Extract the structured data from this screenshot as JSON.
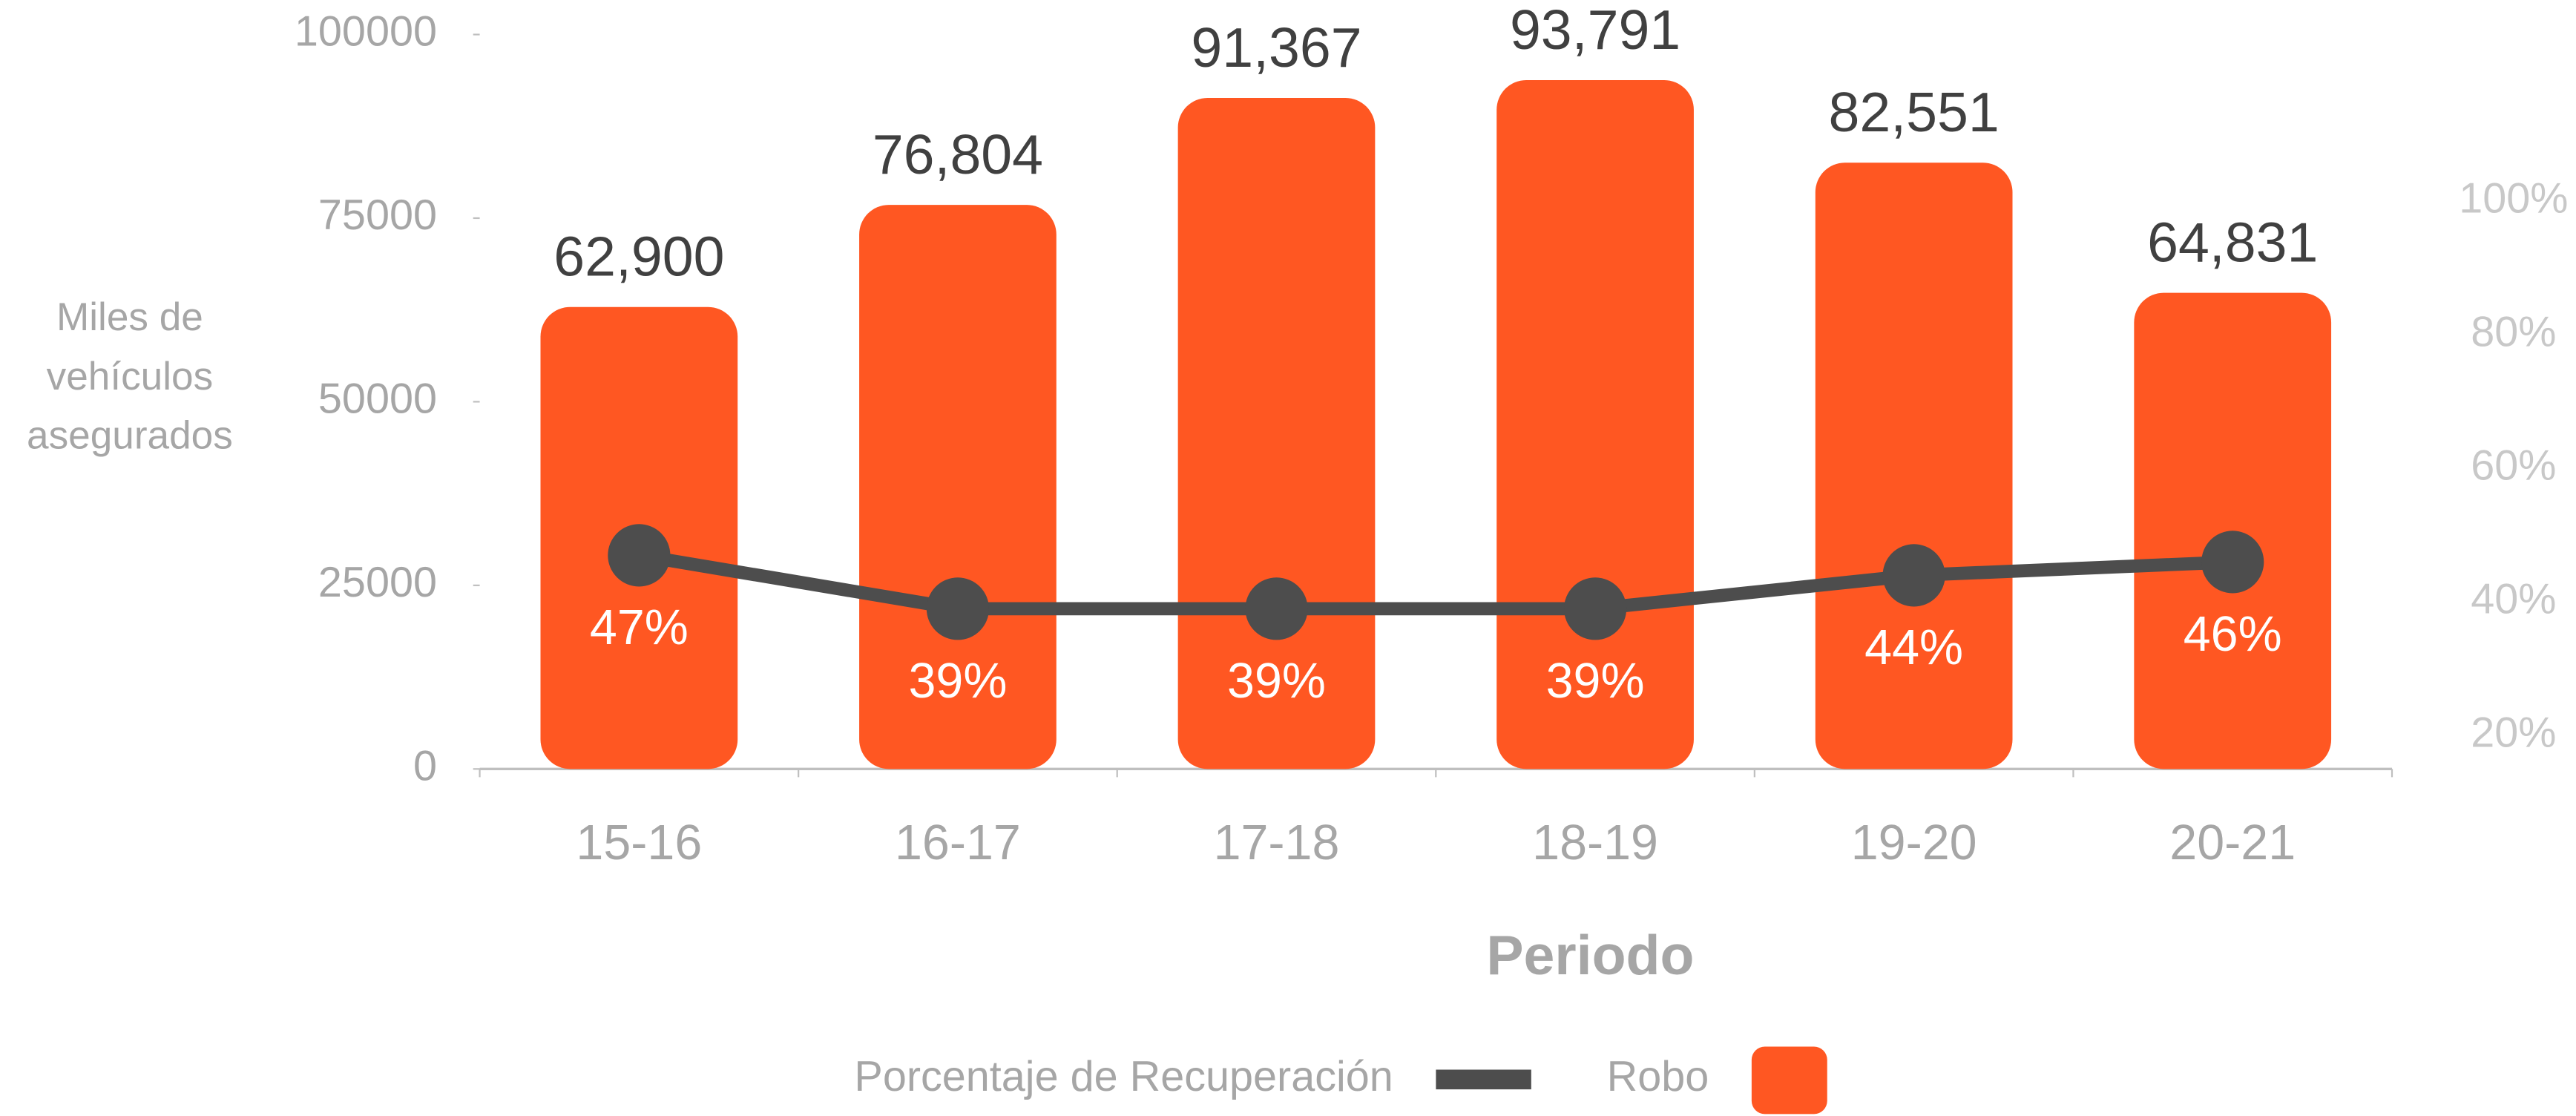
{
  "chart_data": {
    "type": "bar",
    "y_label": "Miles de vehículos asegurados",
    "x_label": "Periodo",
    "categories": [
      "15-16",
      "16-17",
      "17-18",
      "18-19",
      "19-20",
      "20-21"
    ],
    "series": [
      {
        "name": "Porcentaje de Recuperación",
        "type": "line",
        "axis": "y2",
        "color": "#4d4d4d",
        "values": [
          47,
          39,
          39,
          39,
          44,
          46
        ],
        "value_labels": [
          "47%",
          "39%",
          "39%",
          "39%",
          "44%",
          "46%"
        ]
      },
      {
        "name": "Robo",
        "type": "bar",
        "color": "#ff5722",
        "values": [
          62900,
          76804,
          91367,
          93791,
          82551,
          64831
        ],
        "value_labels": [
          "62,900",
          "76,804",
          "91,367",
          "93,791",
          "82,551",
          "64,831"
        ]
      }
    ],
    "ylim": [
      0,
      100000
    ],
    "yticks": [
      0,
      25000,
      50000,
      75000,
      100000
    ],
    "y2lim": [
      15,
      125
    ],
    "y2ticks": [
      {
        "value": 20,
        "label": "20%"
      },
      {
        "value": 40,
        "label": "40%"
      },
      {
        "value": 60,
        "label": "60%"
      },
      {
        "value": 80,
        "label": "80%"
      },
      {
        "value": 100,
        "label": "100%"
      }
    ],
    "legend": "bottom"
  }
}
